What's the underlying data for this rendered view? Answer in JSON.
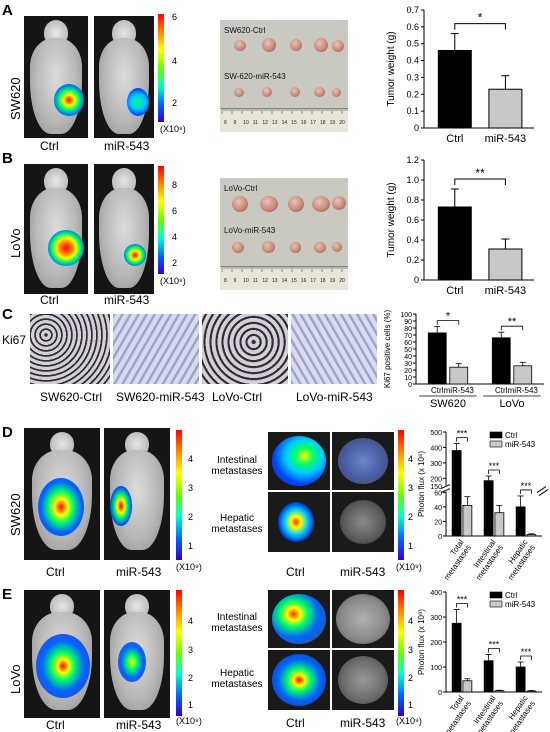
{
  "panels": {
    "A": {
      "letter": "A",
      "cell": "SW620",
      "ctrl": "Ctrl",
      "mir": "miR-543",
      "unit": "(X10⁸)",
      "ticks": [
        "6",
        "4",
        "2"
      ],
      "photo_ctrl": "SW620-Ctrl",
      "photo_mir": "SW-620-miR-543"
    },
    "B": {
      "letter": "B",
      "cell": "LoVo",
      "ctrl": "Ctrl",
      "mir": "miR-543",
      "unit": "(X10⁸)",
      "ticks": [
        "8",
        "6",
        "4",
        "2"
      ],
      "photo_ctrl": "LoVo-Ctrl",
      "photo_mir": "LoVo-miR-543"
    },
    "C": {
      "letter": "C",
      "stain": "Ki67",
      "captions": [
        "SW620-Ctrl",
        "SW620-miR-543",
        "LoVo-Ctrl",
        "LoVo-miR-543"
      ]
    },
    "D": {
      "letter": "D",
      "cell": "SW620",
      "ctrl": "Ctrl",
      "mir": "miR-543",
      "unit1": "(X10⁹)",
      "unit2": "(X10⁹)",
      "ticks1": [
        "4",
        "3",
        "2",
        "1"
      ],
      "ticks2": [
        "4",
        "3",
        "2",
        "1"
      ],
      "intestinal": "Intestinal metastases",
      "hepatic": "Hepatic metastases"
    },
    "E": {
      "letter": "E",
      "cell": "LoVo",
      "ctrl": "Ctrl",
      "mir": "miR-543",
      "unit1": "(X10⁹)",
      "unit2": "(X10⁹)",
      "ticks1": [
        "4",
        "3",
        "2",
        "1"
      ],
      "ticks2": [
        "4",
        "3",
        "2",
        "1"
      ],
      "intestinal": "Intestinal metastases",
      "hepatic": "Hepatic metastases"
    }
  },
  "ruler_numbers": [
    "8",
    "9",
    "10",
    "11",
    "12",
    "13",
    "14",
    "15",
    "16",
    "17",
    "18",
    "19",
    "20"
  ],
  "colors": {
    "ctrl": "#000000",
    "mir": "#c8c8c8"
  },
  "chart_data": [
    {
      "type": "bar",
      "id": "A",
      "categories": [
        "Ctrl",
        "miR-543"
      ],
      "values": [
        0.46,
        0.23
      ],
      "errors": [
        0.1,
        0.08
      ],
      "ylabel": "Tumor weight (g)",
      "ylim": [
        0,
        0.7
      ],
      "yticks": [
        "0",
        "0.1",
        "0.2",
        "0.3",
        "0.4",
        "0.5",
        "0.6",
        "0.7"
      ],
      "sig": "*"
    },
    {
      "type": "bar",
      "id": "B",
      "categories": [
        "Ctrl",
        "miR-543"
      ],
      "values": [
        0.73,
        0.31
      ],
      "errors": [
        0.18,
        0.1
      ],
      "ylabel": "Tumor weight (g)",
      "ylim": [
        0,
        1.2
      ],
      "yticks": [
        "0",
        "0.2",
        "0.4",
        "0.6",
        "0.8",
        "1.0",
        "1.2"
      ],
      "sig": "**"
    },
    {
      "type": "bar",
      "id": "C",
      "groups": [
        "SW620",
        "LoVo"
      ],
      "series": [
        {
          "name": "Ctrl",
          "values": [
            73,
            66
          ],
          "errors": [
            9,
            8
          ]
        },
        {
          "name": "miR-543",
          "values": [
            24,
            26
          ],
          "errors": [
            5,
            5
          ]
        }
      ],
      "ylabel": "Ki67 positive cells (%)",
      "ylim": [
        0,
        100
      ],
      "yticks": [
        "0",
        "10",
        "20",
        "30",
        "40",
        "50",
        "60",
        "70",
        "80",
        "90",
        "100"
      ],
      "sig": [
        "*",
        "**"
      ]
    },
    {
      "type": "bar",
      "id": "D",
      "groups": [
        "Total metastases",
        "Intestinal metastases",
        "Hepatic metastases"
      ],
      "series": [
        {
          "name": "Ctrl",
          "values": [
            380,
            185,
            40
          ],
          "errors": [
            45,
            30,
            15
          ]
        },
        {
          "name": "miR-543",
          "values": [
            42,
            32,
            2
          ],
          "errors": [
            12,
            10,
            1
          ]
        }
      ],
      "ylabel": "Photon flux (x 10⁸)",
      "ylim": [
        0,
        500
      ],
      "yticks": [
        "0",
        "20",
        "40",
        "60",
        "150",
        "200",
        "300",
        "400",
        "500"
      ],
      "broken_axis": true,
      "sig": [
        "***",
        "***",
        "***"
      ]
    },
    {
      "type": "bar",
      "id": "E",
      "groups": [
        "Total metastases",
        "Intestinal metastases",
        "Hepatic metastases"
      ],
      "series": [
        {
          "name": "Ctrl",
          "values": [
            275,
            125,
            100
          ],
          "errors": [
            55,
            25,
            20
          ]
        },
        {
          "name": "miR-543",
          "values": [
            45,
            5,
            4
          ],
          "errors": [
            8,
            2,
            2
          ]
        }
      ],
      "ylabel": "Photon flux (x 10⁸)",
      "ylim": [
        0,
        400
      ],
      "yticks": [
        "0",
        "100",
        "200",
        "300",
        "400"
      ],
      "sig": [
        "***",
        "***",
        "***"
      ]
    }
  ]
}
